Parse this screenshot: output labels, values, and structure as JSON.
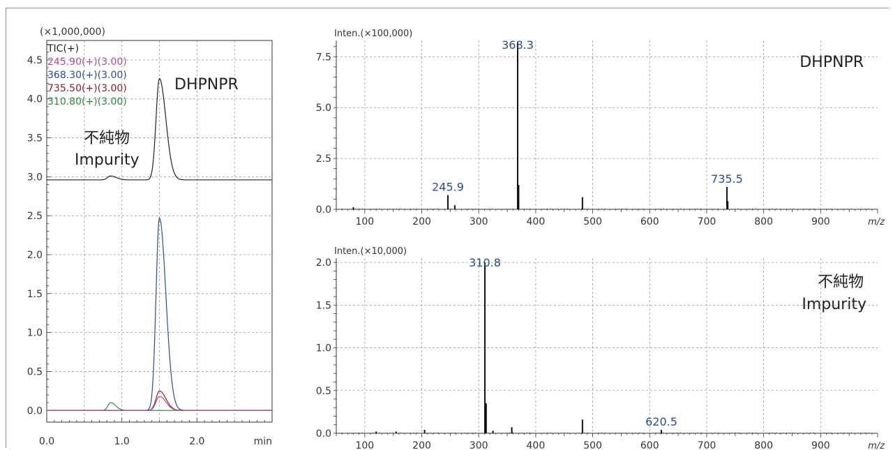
{
  "chart_data": [
    {
      "id": "chromatogram",
      "type": "line",
      "multiplier": "(×1,000,000)",
      "xunit": "min",
      "xlim": [
        0,
        3.0
      ],
      "ylim": [
        -0.15,
        4.75
      ],
      "xticks": [
        "0.0",
        "1.0",
        "2.0"
      ],
      "yticks": [
        "0.0",
        "0.5",
        "1.0",
        "1.5",
        "2.0",
        "2.5",
        "3.0",
        "3.5",
        "4.0",
        "4.5"
      ],
      "legend": [
        {
          "label": "TIC(+)",
          "color": "#222222"
        },
        {
          "label": "245.90(+)(3.00)",
          "color": "#b0508a"
        },
        {
          "label": "368.30(+)(3.00)",
          "color": "#2a4d9a"
        },
        {
          "label": "735.50(+)(3.00)",
          "color": "#8c1f2a"
        },
        {
          "label": "310.80(+)(3.00)",
          "color": "#2e8a3e"
        }
      ],
      "annotations": {
        "main_compound": "DHPNPR",
        "impurity_jp": "不純物",
        "impurity_en": "Impurity"
      },
      "series": [
        {
          "name": "TIC(+)",
          "color": "#222222",
          "baseline": 2.96,
          "peaks": [
            {
              "rt": 0.85,
              "h": 0.05,
              "w": 0.04
            },
            {
              "rt": 1.5,
              "h": 1.3,
              "w": 0.045
            }
          ]
        },
        {
          "name": "245.90(+)(3.00)",
          "color": "#b0508a",
          "baseline": 0.0,
          "peaks": [
            {
              "rt": 1.5,
              "h": 0.18,
              "w": 0.045
            }
          ]
        },
        {
          "name": "368.30(+)(3.00)",
          "color": "#2a4d9a",
          "baseline": 0.0,
          "peaks": [
            {
              "rt": 1.5,
              "h": 2.47,
              "w": 0.045
            }
          ]
        },
        {
          "name": "735.50(+)(3.00)",
          "color": "#8c1f2a",
          "baseline": 0.0,
          "peaks": [
            {
              "rt": 1.5,
              "h": 0.25,
              "w": 0.045
            }
          ]
        },
        {
          "name": "310.80(+)(3.00)",
          "color": "#2e8a3e",
          "baseline": 0.0,
          "peaks": [
            {
              "rt": 0.85,
              "h": 0.1,
              "w": 0.035
            }
          ]
        }
      ]
    },
    {
      "id": "spectrum-dhpnpr",
      "type": "bar",
      "ylabel": "Inten.(×100,000)",
      "xlabel": "m/z",
      "xlim": [
        50,
        1000
      ],
      "ylim": [
        0,
        8.3
      ],
      "xticks": [
        100,
        200,
        300,
        400,
        500,
        600,
        700,
        800,
        900
      ],
      "yticks": [
        "0.0",
        "2.5",
        "5.0",
        "7.5"
      ],
      "annotation": "DHPNPR",
      "peaks": [
        {
          "mz": 80,
          "i": 0.1
        },
        {
          "mz": 245.9,
          "i": 0.7
        },
        {
          "mz": 258,
          "i": 0.2
        },
        {
          "mz": 368.3,
          "i": 8.2
        },
        {
          "mz": 370,
          "i": 1.2
        },
        {
          "mz": 482,
          "i": 0.6
        },
        {
          "mz": 735.5,
          "i": 1.1
        },
        {
          "mz": 737,
          "i": 0.4
        }
      ],
      "labels": [
        {
          "mz": 245.9,
          "text": "245.9"
        },
        {
          "mz": 368.3,
          "text": "368.3"
        },
        {
          "mz": 735.5,
          "text": "735.5"
        }
      ]
    },
    {
      "id": "spectrum-impurity",
      "type": "bar",
      "ylabel": "Inten.(×10,000)",
      "xlabel": "m/z",
      "xlim": [
        50,
        1000
      ],
      "ylim": [
        0,
        2.05
      ],
      "xticks": [
        100,
        200,
        300,
        400,
        500,
        600,
        700,
        800,
        900
      ],
      "yticks": [
        "0.0",
        "0.5",
        "1.0",
        "1.5",
        "2.0"
      ],
      "annotation_jp": "不純物",
      "annotation_en": "Impurity",
      "peaks": [
        {
          "mz": 120,
          "i": 0.02
        },
        {
          "mz": 155,
          "i": 0.02
        },
        {
          "mz": 205,
          "i": 0.04
        },
        {
          "mz": 310.8,
          "i": 2.0
        },
        {
          "mz": 313,
          "i": 0.35
        },
        {
          "mz": 325,
          "i": 0.03
        },
        {
          "mz": 358,
          "i": 0.07
        },
        {
          "mz": 482,
          "i": 0.16
        },
        {
          "mz": 620.5,
          "i": 0.04
        }
      ],
      "labels": [
        {
          "mz": 310.8,
          "text": "310.8"
        },
        {
          "mz": 620.5,
          "text": "620.5"
        }
      ]
    }
  ]
}
